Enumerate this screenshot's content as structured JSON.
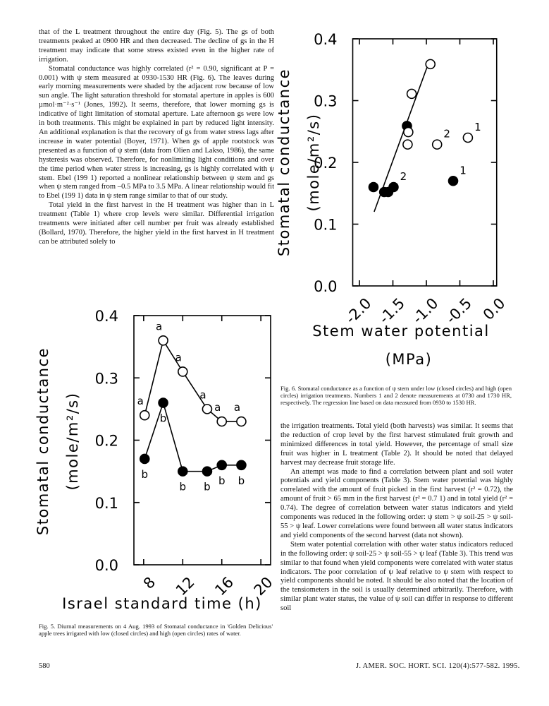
{
  "left_column": {
    "paragraphs": [
      "that of the L treatment throughout the entire day (Fig. 5). The gs of both treatments peaked at 0900 HR and then decreased. The decline of gs in the H treatment may indicate that some stress existed even in the higher rate of irrigation.",
      "Stomatal conductance was highly correlated (r² = 0.90, significant at P = 0.001) with ψ stem measured at 0930-1530 HR (Fig. 6). The leaves during early morning measurements were shaded by the adjacent row because of low sun angle. The light saturation threshold for stomatal aperture in apples is 600 µmol·m⁻²·s⁻¹ (Jones, 1992). It seems, therefore, that lower morning gs is indicative of light limitation of stomatal aperture. Late afternoon gs were low in both treatments. This might be explained in part by reduced light intensity. An additional explanation is that the recovery of gs from water stress lags after increase in water potential (Boyer, 1971). When gs of apple rootstock was presented as a function of ψ stem (data from Olien and Lakso, 1986), the same hysteresis was observed. Therefore, for nonlimiting light conditions and over the time period when water stress is increasing, gs is highly correlated with ψ stem. Ebel (199 1) reported a nonlinear relationship between ψ stem and gs when ψ stem ranged from –0.5 MPa to 3.5 MPa. A linear relationship would fit to Ebel (199 1) data in ψ stem range similar to that of our study.",
      "Total yield in the first harvest in the H treatment was higher than in L treatment (Table 1) where crop levels were similar. Differential irrigation treatments were initiated after cell number per fruit was already established (Bollard, 1970). Therefore, the higher yield in the first harvest in H treatment can be attributed solely to"
    ]
  },
  "right_column": {
    "paragraphs": [
      "the irrigation treatments. Total yield (both harvests) was similar. It seems that the reduction of crop level by the first harvest stimulated fruit growth and minimized differences in total yield. However, the percentage of small size fruit was higher in L treatment (Table 2). It should be noted that delayed harvest may decrease fruit storage life.",
      "An attempt was made to find a correlation between plant and soil water potentials and yield components (Table 3). Stem water potential was highly correlated with the amount of fruit picked in the first harvest (r² = 0.72), the amount of fruit > 65 mm in the first harvest (r² = 0.7 1) and in total yield (r² = 0.74). The degree of correlation between water status indicators and yield components was reduced in the following order: ψ stem > ψ soil-25 > ψ soil-55 > ψ leaf. Lower correlations were found between all water status indicators and yield components of the second harvest (data not shown).",
      "Stem water potential correlation with other water status indicators reduced in the following order: ψ soil-25 > ψ soil-55 > ψ leaf (Table 3). This trend was similar to that found when yield components were correlated with water status indicators. The poor correlation of ψ leaf relative to ψ stem with respect to yield components should be noted. It should be also noted that the location of the tensiometers in the soil is usually determined arbitrarily. Therefore, with similar plant water status, the value of ψ soil can differ in response to different soil"
    ]
  },
  "captions": {
    "fig6": "Fig. 6. Stomatal conductance as a function of ψ stem under low (closed circles) and high (open circles) irrigation treatments. Numbers 1 and 2 denote measurements at 0730 and 1730 HR, respectively. The regression line based on data measured from 0930 to 1530 HR.",
    "fig5": "Fig. 5. Diurnal measurements on 4 Aug. 1993 of Stomatal conductance in 'Golden Delicious' apple trees irrigated with low (closed circles) and high (open circles) rates of water."
  },
  "footer": {
    "page": "580",
    "journal": "J. AMER. SOC. HORT. SCI. 120(4):577-582. 1995."
  },
  "chart_data": [
    {
      "type": "scatter",
      "ylabel": [
        "Stomatal conductance",
        "(mole/m²/s)"
      ],
      "xlabel": [
        "Stem water potential",
        "(MPa)"
      ],
      "xlim": [
        -2.1,
        0.05
      ],
      "ylim": [
        0,
        0.4
      ],
      "xticks": [
        {
          "value": -2,
          "label": "-2.0"
        },
        {
          "value": -1.5,
          "label": "-1.5"
        },
        {
          "value": -1,
          "label": "-1.0"
        },
        {
          "value": -0.5,
          "label": "-0.5"
        },
        {
          "value": 0,
          "label": "0.0"
        }
      ],
      "yticks": [
        {
          "value": 0,
          "label": "0.0"
        },
        0.1,
        0.2,
        0.3,
        0.4
      ],
      "series": [
        {
          "marker": "filled",
          "color": "#000000",
          "x": [
            -1.79,
            -1.63,
            -1.57,
            -1.49,
            -1.29,
            -0.6
          ],
          "values": [
            0.16,
            0.152,
            0.152,
            0.16,
            0.259,
            0.17
          ],
          "labels": [
            null,
            null,
            null,
            "2",
            null,
            "1"
          ]
        },
        {
          "marker": "open",
          "color": "#000000",
          "x": [
            -0.94,
            -1.22,
            -1.27,
            -1.28,
            -0.84,
            -0.38
          ],
          "values": [
            0.359,
            0.311,
            0.249,
            0.229,
            0.229,
            0.24
          ],
          "labels": [
            null,
            null,
            null,
            null,
            "2",
            "1"
          ]
        }
      ],
      "regression_line": {
        "x": [
          -1.78,
          -0.97
        ],
        "values": [
          0.12,
          0.36
        ]
      }
    },
    {
      "type": "line",
      "ylabel": [
        "Stomatal conductance",
        "(mole/m²/s)"
      ],
      "xlabel": [
        "Israel standard time (h)"
      ],
      "xlim": [
        7,
        21
      ],
      "ylim": [
        0,
        0.4
      ],
      "xticks": [
        8,
        12,
        16,
        20
      ],
      "yticks": [
        {
          "value": 0,
          "label": "0.0"
        },
        0.1,
        0.2,
        0.3,
        0.4
      ],
      "series": [
        {
          "marker": "open",
          "color": "#000000",
          "x": [
            8.1,
            10,
            12,
            14.5,
            16,
            18
          ],
          "values": [
            0.24,
            0.36,
            0.31,
            0.25,
            0.23,
            0.23
          ],
          "labels": [
            "a",
            "a",
            "a",
            "a",
            "a",
            "a"
          ]
        },
        {
          "marker": "filled",
          "color": "#000000",
          "x": [
            8.1,
            10,
            12,
            14.5,
            16,
            18
          ],
          "values": [
            0.17,
            0.26,
            0.15,
            0.15,
            0.16,
            0.16
          ],
          "labels": [
            "b",
            "b",
            "b",
            "b",
            "b",
            "b"
          ]
        }
      ]
    }
  ]
}
